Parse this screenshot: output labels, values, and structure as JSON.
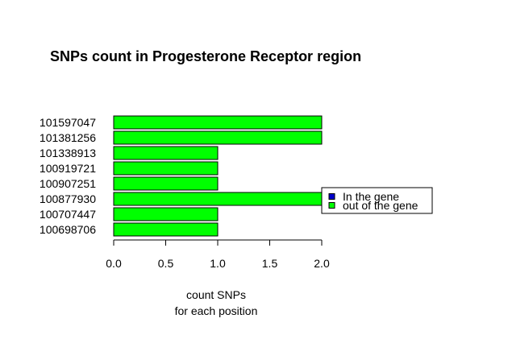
{
  "chart_data": {
    "type": "bar",
    "orientation": "horizontal",
    "title": "SNPs count in Progesterone Receptor region",
    "xlabel": [
      "count SNPs",
      "for each position"
    ],
    "ylabel": "",
    "categories": [
      "100698706",
      "100707447",
      "100877930",
      "100907251",
      "100919721",
      "101338913",
      "101381256",
      "101597047"
    ],
    "values": [
      1,
      1,
      2,
      1,
      1,
      1,
      2,
      2
    ],
    "bar_colors": [
      "#00ff00",
      "#00ff00",
      "#00ff00",
      "#00ff00",
      "#00ff00",
      "#00ff00",
      "#00ff00",
      "#00ff00"
    ],
    "xlim": [
      0,
      2
    ],
    "xticks": [
      "0.0",
      "0.5",
      "1.0",
      "1.5",
      "2.0"
    ],
    "grid": false,
    "legend": {
      "position": "right",
      "entries": [
        {
          "label": "In the gene",
          "color": "#0000cc"
        },
        {
          "label": "out of the gene",
          "color": "#00ff00"
        }
      ]
    }
  }
}
